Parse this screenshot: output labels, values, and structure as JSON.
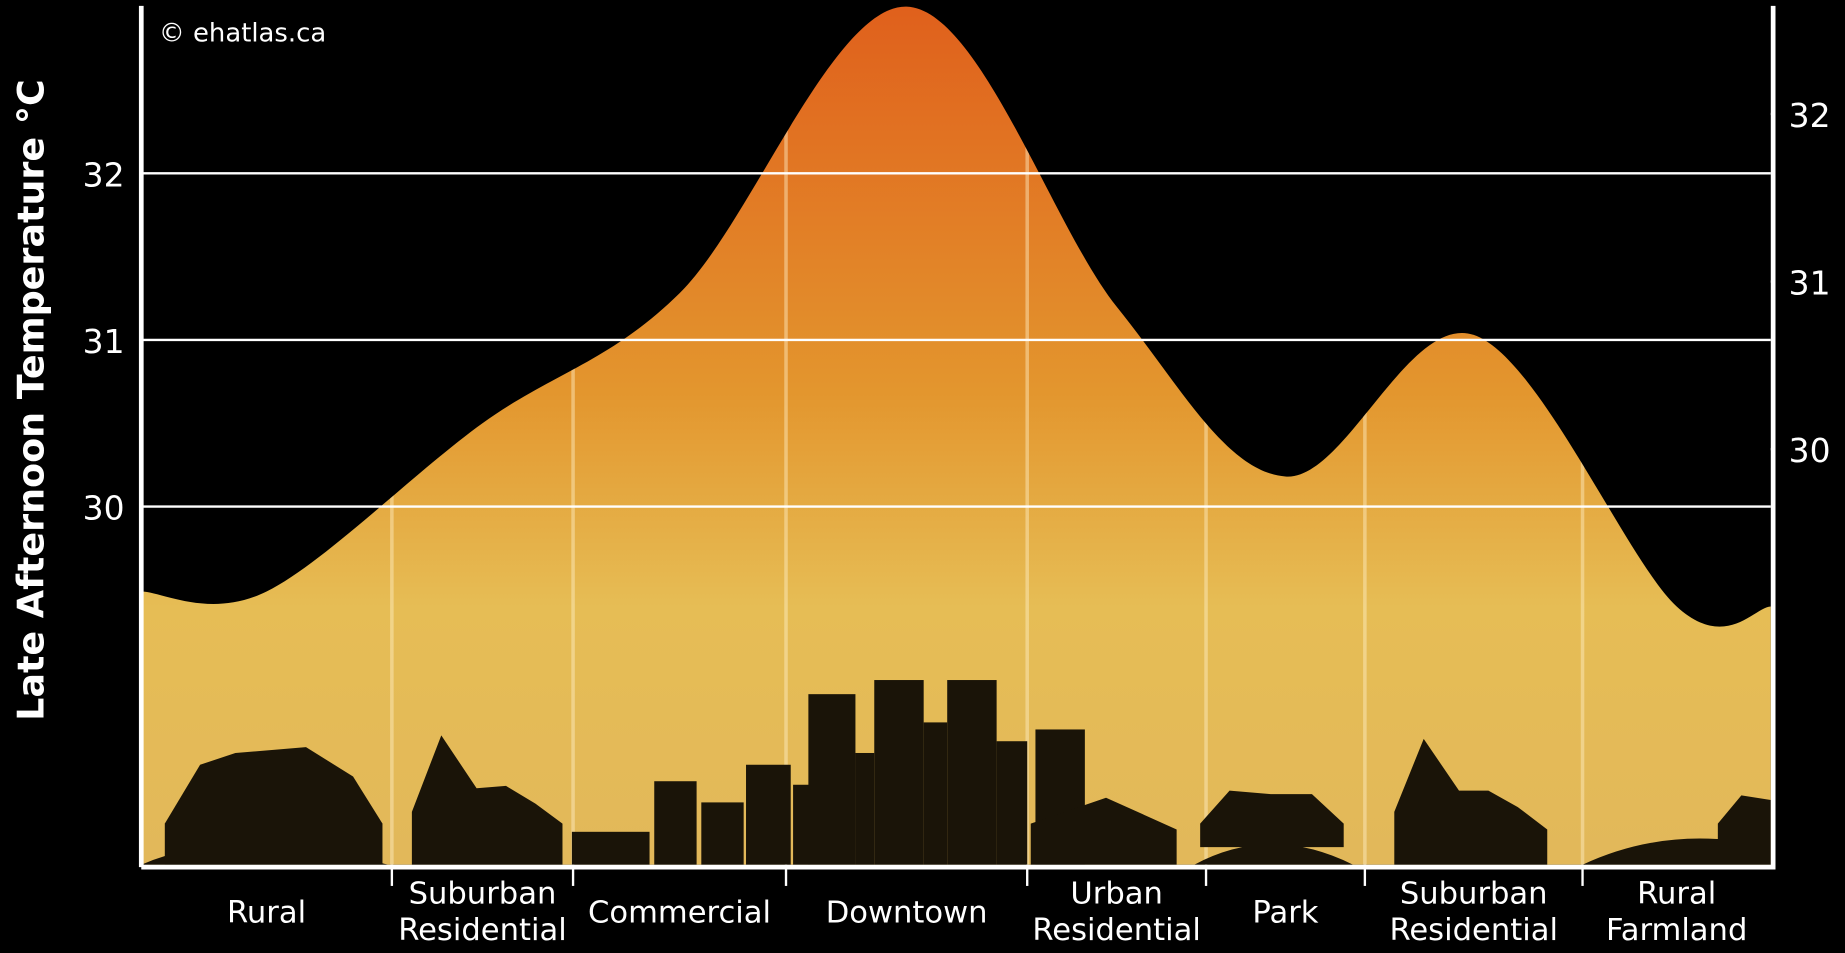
{
  "chart_data": {
    "type": "area",
    "credit": "© ehatlas.ca",
    "y_label": "Late Afternoon Temperature °C",
    "categories": [
      "Rural",
      "Suburban Residential",
      "Commercial",
      "Downtown",
      "Urban Residential",
      "Park",
      "Suburban Residential",
      "Rural Farmland"
    ],
    "values": [
      29.49,
      30.5,
      31.28,
      33.0,
      31.2,
      30.18,
      31.03,
      29.4
    ],
    "ylim": [
      27.85,
      33.04
    ],
    "yticks": [
      30,
      31,
      32
    ],
    "y2lim": [
      27.52,
      32.68
    ],
    "y2ticks": [
      30,
      31,
      32
    ],
    "grid": true
  }
}
